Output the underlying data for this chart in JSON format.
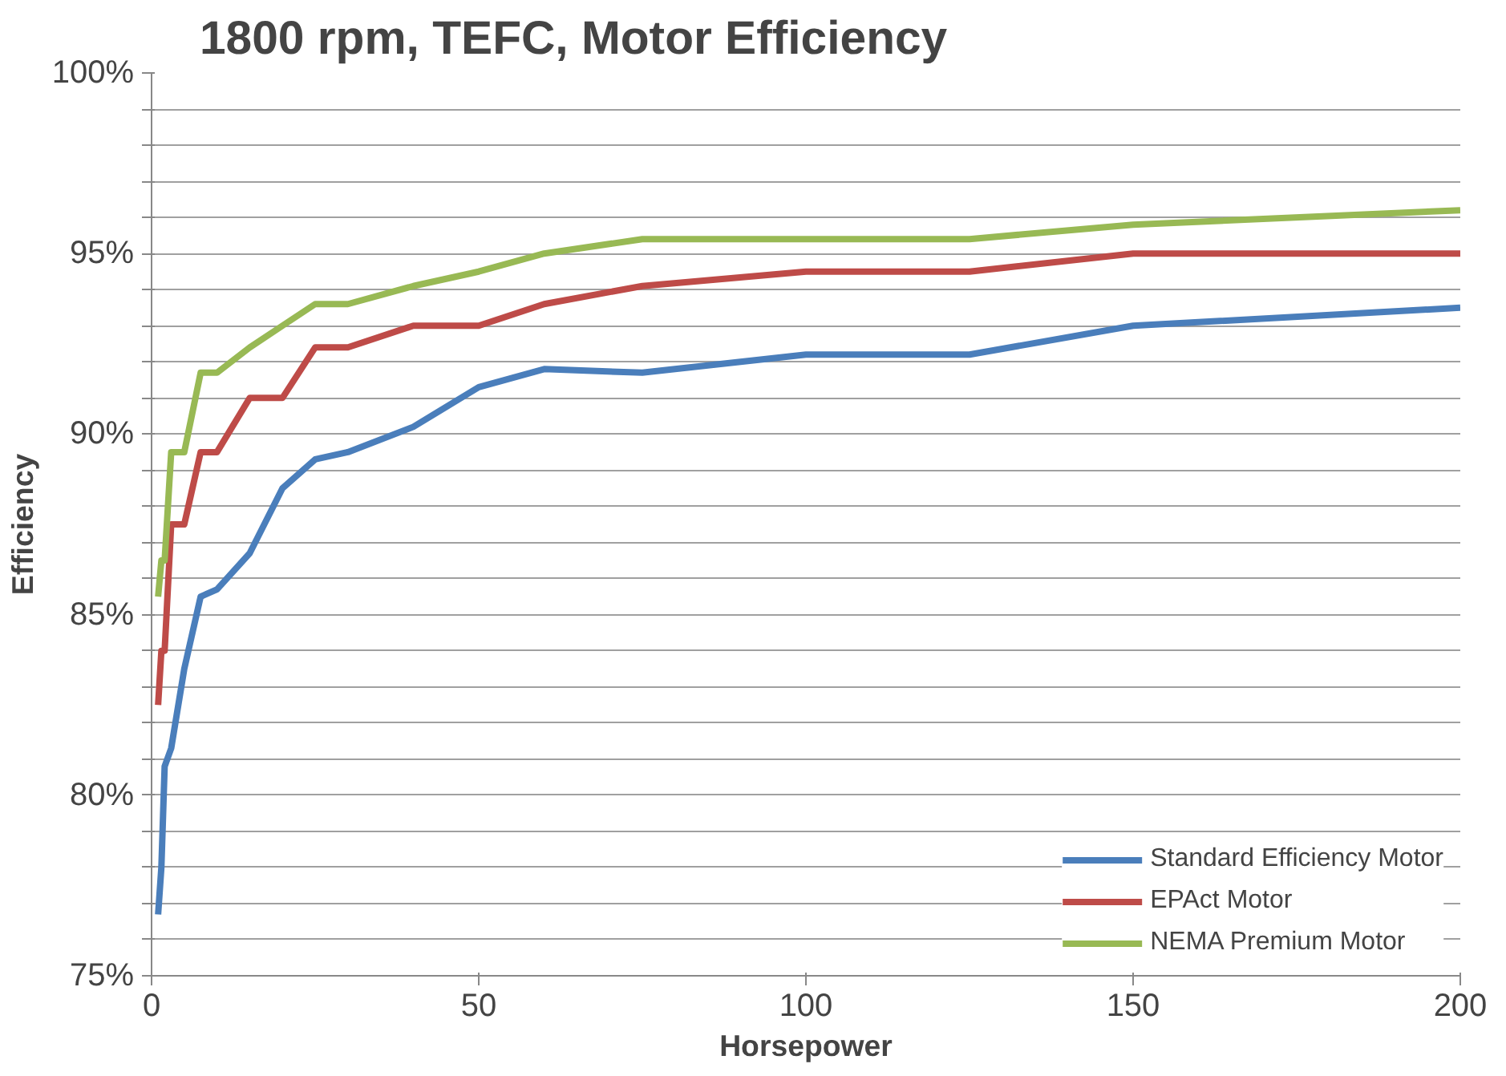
{
  "chart_data": {
    "type": "line",
    "title": "1800 rpm, TEFC, Motor Efficiency",
    "xlabel": "Horsepower",
    "ylabel": "Efficiency",
    "x": [
      1,
      1.5,
      2,
      3,
      5,
      7.5,
      10,
      15,
      20,
      25,
      30,
      40,
      50,
      60,
      75,
      100,
      125,
      150,
      200
    ],
    "series": [
      {
        "name": "Standard Efficiency Motor",
        "color": "#4a7ebb",
        "values": [
          76.7,
          78,
          80.8,
          81.3,
          83.5,
          85.5,
          85.7,
          86.7,
          88.5,
          89.3,
          89.5,
          90.2,
          91.3,
          91.8,
          91.7,
          92.2,
          92.2,
          93.0,
          93.5
        ]
      },
      {
        "name": "EPAct Motor",
        "color": "#be4b48",
        "values": [
          82.5,
          84,
          84,
          87.5,
          87.5,
          89.5,
          89.5,
          91,
          91,
          92.4,
          92.4,
          93,
          93,
          93.6,
          94.1,
          94.5,
          94.5,
          95,
          95
        ]
      },
      {
        "name": "NEMA Premium Motor",
        "color": "#98b954",
        "values": [
          85.5,
          86.5,
          86.5,
          89.5,
          89.5,
          91.7,
          91.7,
          92.4,
          93,
          93.6,
          93.6,
          94.1,
          94.5,
          95,
          95.4,
          95.4,
          95.4,
          95.8,
          96.2
        ]
      }
    ],
    "xlim": [
      0,
      200
    ],
    "xticks": [
      0,
      50,
      100,
      150,
      200
    ],
    "ylim": [
      75,
      100
    ],
    "yticks": [
      {
        "value": 75,
        "label": "75%"
      },
      {
        "value": 76,
        "label": null
      },
      {
        "value": 77,
        "label": null
      },
      {
        "value": 78,
        "label": null
      },
      {
        "value": 79,
        "label": null
      },
      {
        "value": 80,
        "label": "80%"
      },
      {
        "value": 81,
        "label": null
      },
      {
        "value": 82,
        "label": null
      },
      {
        "value": 83,
        "label": null
      },
      {
        "value": 84,
        "label": null
      },
      {
        "value": 85,
        "label": "85%"
      },
      {
        "value": 86,
        "label": null
      },
      {
        "value": 87,
        "label": null
      },
      {
        "value": 88,
        "label": null
      },
      {
        "value": 89,
        "label": null
      },
      {
        "value": 90,
        "label": "90%"
      },
      {
        "value": 91,
        "label": null
      },
      {
        "value": 92,
        "label": null
      },
      {
        "value": 93,
        "label": null
      },
      {
        "value": 94,
        "label": null
      },
      {
        "value": 95,
        "label": "95%"
      },
      {
        "value": 96,
        "label": null
      },
      {
        "value": 97,
        "label": null
      },
      {
        "value": 98,
        "label": null
      },
      {
        "value": 99,
        "label": null
      },
      {
        "value": 100,
        "label": "100%"
      }
    ],
    "grid": "y",
    "legend": "bottom right",
    "marker": "none",
    "line_style": "solid"
  }
}
